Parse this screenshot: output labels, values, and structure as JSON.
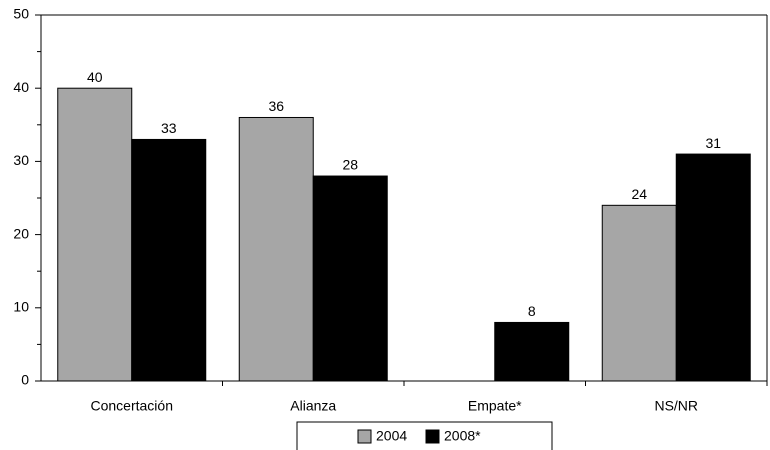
{
  "chart_data": {
    "type": "bar",
    "categories": [
      "Concertación",
      "Alianza",
      "Empate*",
      "NS/NR"
    ],
    "series": [
      {
        "name": "2004",
        "color": "#a6a6a6",
        "values": [
          40,
          36,
          null,
          24
        ]
      },
      {
        "name": "2008*",
        "color": "#000000",
        "values": [
          33,
          28,
          8,
          31
        ]
      }
    ],
    "ylim": [
      0,
      50
    ],
    "yticks": [
      0,
      10,
      20,
      30,
      40,
      50
    ],
    "minor_yticks": [
      5,
      15,
      25,
      35,
      45
    ],
    "legend": "bottom"
  }
}
